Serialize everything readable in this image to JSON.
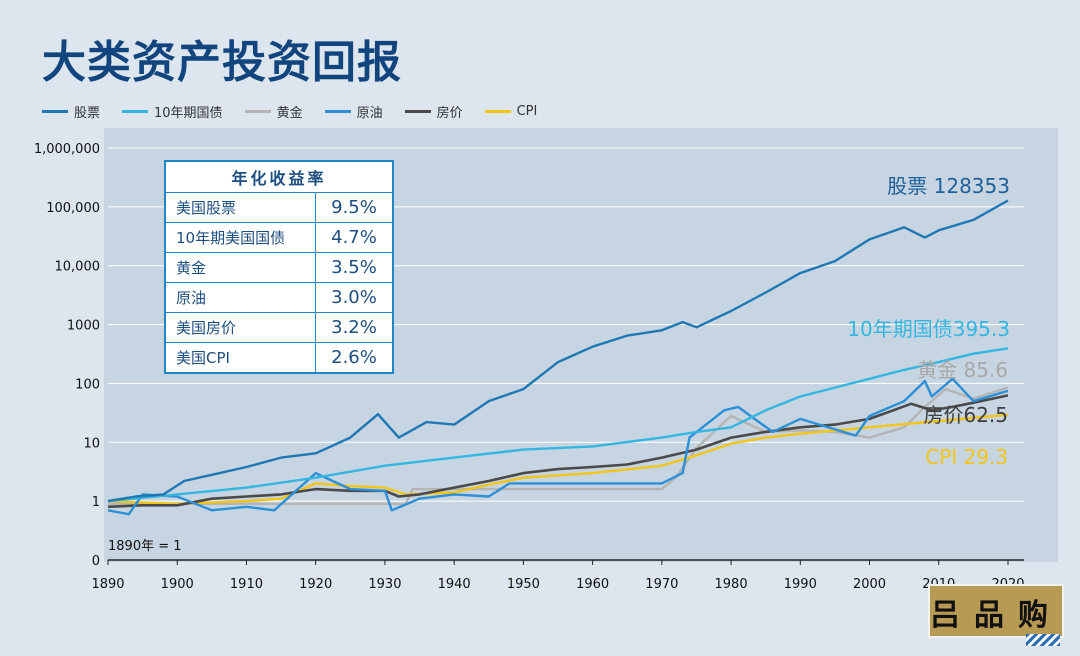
{
  "page": {
    "title": "大类资产投资回报"
  },
  "legend": [
    {
      "label": "股票",
      "color": "#1f78b4"
    },
    {
      "label": "10年期国债",
      "color": "#35b6e0"
    },
    {
      "label": "黄金",
      "color": "#b4b4b4"
    },
    {
      "label": "原油",
      "color": "#2d8fd5"
    },
    {
      "label": "房价",
      "color": "#4a4a4a"
    },
    {
      "label": "CPI",
      "color": "#f2c519"
    }
  ],
  "table": {
    "header": "年化收益率",
    "rows": [
      {
        "name": "美国股票",
        "value": "9.5%"
      },
      {
        "name": "10年期美国国债",
        "value": "4.7%"
      },
      {
        "name": "黄金",
        "value": "3.5%"
      },
      {
        "name": "原油",
        "value": "3.0%"
      },
      {
        "name": "美国房价",
        "value": "3.2%"
      },
      {
        "name": "美国CPI",
        "value": "2.6%"
      }
    ]
  },
  "logo": {
    "text": "吕品购"
  },
  "chart_data": {
    "type": "line",
    "title": "大类资产投资回报",
    "yscale": "log",
    "ylim": [
      0.1,
      1000000
    ],
    "xlim": [
      1890,
      2020
    ],
    "xticks": [
      1890,
      1900,
      1910,
      1920,
      1930,
      1940,
      1950,
      1960,
      1970,
      1980,
      1990,
      2000,
      2010,
      2020
    ],
    "yticks": [
      {
        "value": 0.1,
        "label": "0"
      },
      {
        "value": 1,
        "label": "1"
      },
      {
        "value": 10,
        "label": "10"
      },
      {
        "value": 100,
        "label": "100"
      },
      {
        "value": 1000,
        "label": "1000"
      },
      {
        "value": 10000,
        "label": "10,000"
      },
      {
        "value": 100000,
        "label": "100,000"
      },
      {
        "value": 1000000,
        "label": "1,000,000"
      }
    ],
    "base_note": "1890年 = 1",
    "series": [
      {
        "name": "股票",
        "color": "#1f78b4",
        "end_label": "股票 128353",
        "x": [
          1890,
          1894,
          1898,
          1901,
          1905,
          1910,
          1915,
          1920,
          1925,
          1929,
          1932,
          1936,
          1940,
          1945,
          1950,
          1955,
          1960,
          1965,
          1970,
          1973,
          1975,
          1980,
          1985,
          1990,
          1995,
          2000,
          2005,
          2008,
          2010,
          2015,
          2020
        ],
        "y": [
          1,
          1.2,
          1.3,
          2.2,
          2.8,
          3.8,
          5.5,
          6.5,
          12,
          30,
          12,
          22,
          20,
          50,
          80,
          230,
          420,
          650,
          800,
          1100,
          900,
          1700,
          3500,
          7500,
          12000,
          28000,
          45000,
          30000,
          40000,
          60000,
          128353
        ]
      },
      {
        "name": "10年期国债",
        "color": "#35b6e0",
        "end_label": "10年期国债395.3",
        "x": [
          1890,
          1900,
          1910,
          1920,
          1930,
          1940,
          1950,
          1960,
          1970,
          1975,
          1980,
          1985,
          1990,
          1995,
          2000,
          2005,
          2010,
          2015,
          2020
        ],
        "y": [
          1,
          1.3,
          1.7,
          2.5,
          4,
          5.5,
          7.5,
          8.5,
          12,
          15,
          18,
          35,
          60,
          85,
          120,
          170,
          230,
          320,
          395.3
        ]
      },
      {
        "name": "黄金",
        "color": "#b4b4b4",
        "end_label": "黄金 85.6",
        "x": [
          1890,
          1933,
          1934,
          1970,
          1972,
          1975,
          1980,
          1985,
          1990,
          1995,
          2000,
          2005,
          2008,
          2011,
          2015,
          2020
        ],
        "y": [
          0.9,
          0.9,
          1.6,
          1.6,
          2.5,
          8,
          28,
          15,
          16,
          15,
          12,
          18,
          40,
          80,
          55,
          85.6
        ]
      },
      {
        "name": "原油",
        "color": "#2d8fd5",
        "end_label": "",
        "x": [
          1890,
          1893,
          1895,
          1900,
          1905,
          1910,
          1914,
          1920,
          1925,
          1930,
          1931,
          1935,
          1940,
          1945,
          1948,
          1955,
          1960,
          1970,
          1973,
          1974,
          1979,
          1981,
          1986,
          1990,
          1998,
          2000,
          2005,
          2008,
          2009,
          2012,
          2015,
          2020
        ],
        "y": [
          0.7,
          0.6,
          1.3,
          1.2,
          0.7,
          0.8,
          0.7,
          3,
          1.6,
          1.5,
          0.7,
          1.1,
          1.3,
          1.2,
          2,
          2,
          2,
          2,
          3,
          12,
          35,
          40,
          15,
          25,
          13,
          28,
          50,
          110,
          60,
          120,
          50,
          75
        ]
      },
      {
        "name": "房价",
        "color": "#4a4a4a",
        "end_label": "房价62.5",
        "x": [
          1890,
          1895,
          1900,
          1905,
          1910,
          1915,
          1920,
          1925,
          1930,
          1932,
          1935,
          1940,
          1945,
          1950,
          1955,
          1960,
          1965,
          1970,
          1975,
          1980,
          1985,
          1990,
          1995,
          2000,
          2006,
          2009,
          2012,
          2015,
          2020
        ],
        "y": [
          0.8,
          0.85,
          0.85,
          1.1,
          1.2,
          1.3,
          1.6,
          1.5,
          1.5,
          1.2,
          1.3,
          1.7,
          2.2,
          3,
          3.5,
          3.8,
          4.2,
          5.5,
          7.5,
          12,
          15,
          18,
          20,
          25,
          45,
          35,
          40,
          47,
          62.5
        ]
      },
      {
        "name": "CPI",
        "color": "#f2c519",
        "end_label": "CPI 29.3",
        "x": [
          1890,
          1900,
          1910,
          1915,
          1920,
          1925,
          1930,
          1933,
          1940,
          1945,
          1950,
          1960,
          1970,
          1975,
          1980,
          1985,
          1990,
          2000,
          2010,
          2020
        ],
        "y": [
          1,
          0.9,
          1,
          1.1,
          2,
          1.8,
          1.7,
          1.3,
          1.4,
          1.9,
          2.5,
          3,
          4,
          6,
          9.5,
          12,
          14,
          18,
          23,
          29.3
        ]
      }
    ]
  }
}
